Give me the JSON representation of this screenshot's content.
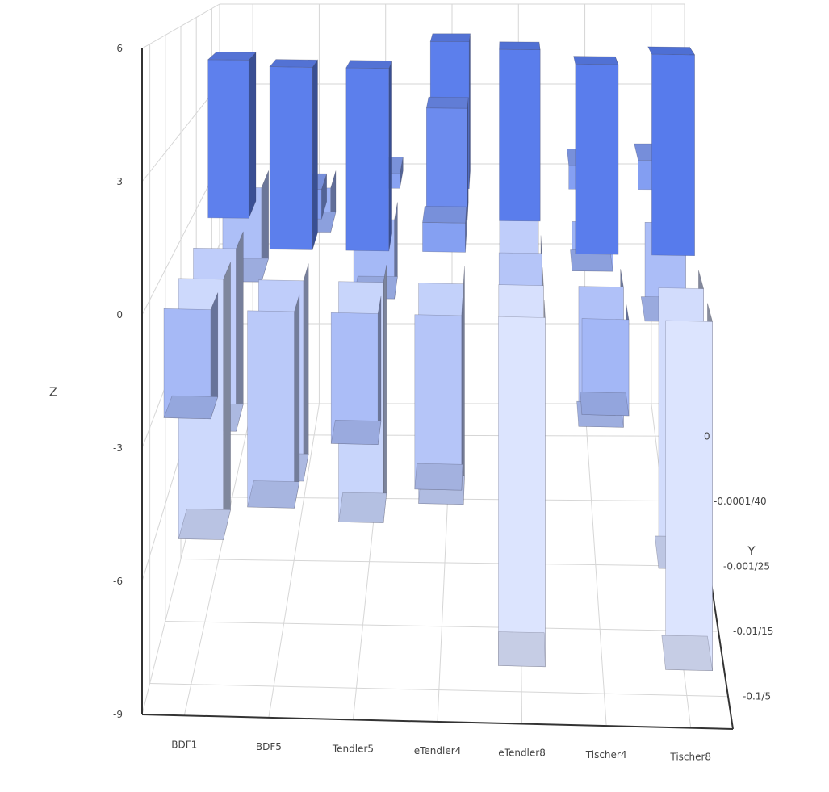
{
  "chart_data": {
    "type": "bar3d",
    "title": "",
    "axes": {
      "x": {
        "title": "",
        "tick_labels": [
          "BDF1",
          "BDF5",
          "Tendler5",
          "eTendler4",
          "eTendler8",
          "Tischer4",
          "Tischer8"
        ]
      },
      "y": {
        "title": "Y",
        "tick_labels": [
          "0",
          "-0.0001/40",
          "-0.001/25",
          "-0.01/15",
          "-0.1/5"
        ]
      },
      "z": {
        "title": "Z",
        "tick_labels": [
          "-9",
          "-6",
          "-3",
          "0",
          "3",
          "6"
        ],
        "range": [
          -9,
          6
        ]
      }
    },
    "grid": true,
    "colorscale": {
      "low": "#e6ecff",
      "high": "#5277eb",
      "cmin": -9,
      "cmax": 6
    },
    "x_categories": [
      "BDF1",
      "BDF5",
      "Tendler5",
      "eTendler4",
      "eTendler8",
      "Tischer4",
      "Tischer8"
    ],
    "y_categories": [
      "-0.1/5",
      "-0.01/15",
      "-0.001/25",
      "-0.0001/40",
      "0"
    ],
    "z_values": [
      [
        -2.5,
        -6.5,
        -5.0,
        4.8,
        -3.2
      ],
      [
        -4.5,
        -5.0,
        5.0,
        0.9,
        -1.5
      ],
      [
        -3.0,
        -6.0,
        5.0,
        -2.4,
        0.5
      ],
      [
        -4.0,
        -5.5,
        0.8,
        3.4,
        5.0
      ],
      [
        -8.0,
        -7.5,
        -4.0,
        5.2,
        -5.0
      ],
      [
        -2.2,
        -3.5,
        5.2,
        -1.5,
        0.8
      ],
      [
        -8.0,
        -7.0,
        5.5,
        -3.0,
        1.0
      ]
    ]
  }
}
